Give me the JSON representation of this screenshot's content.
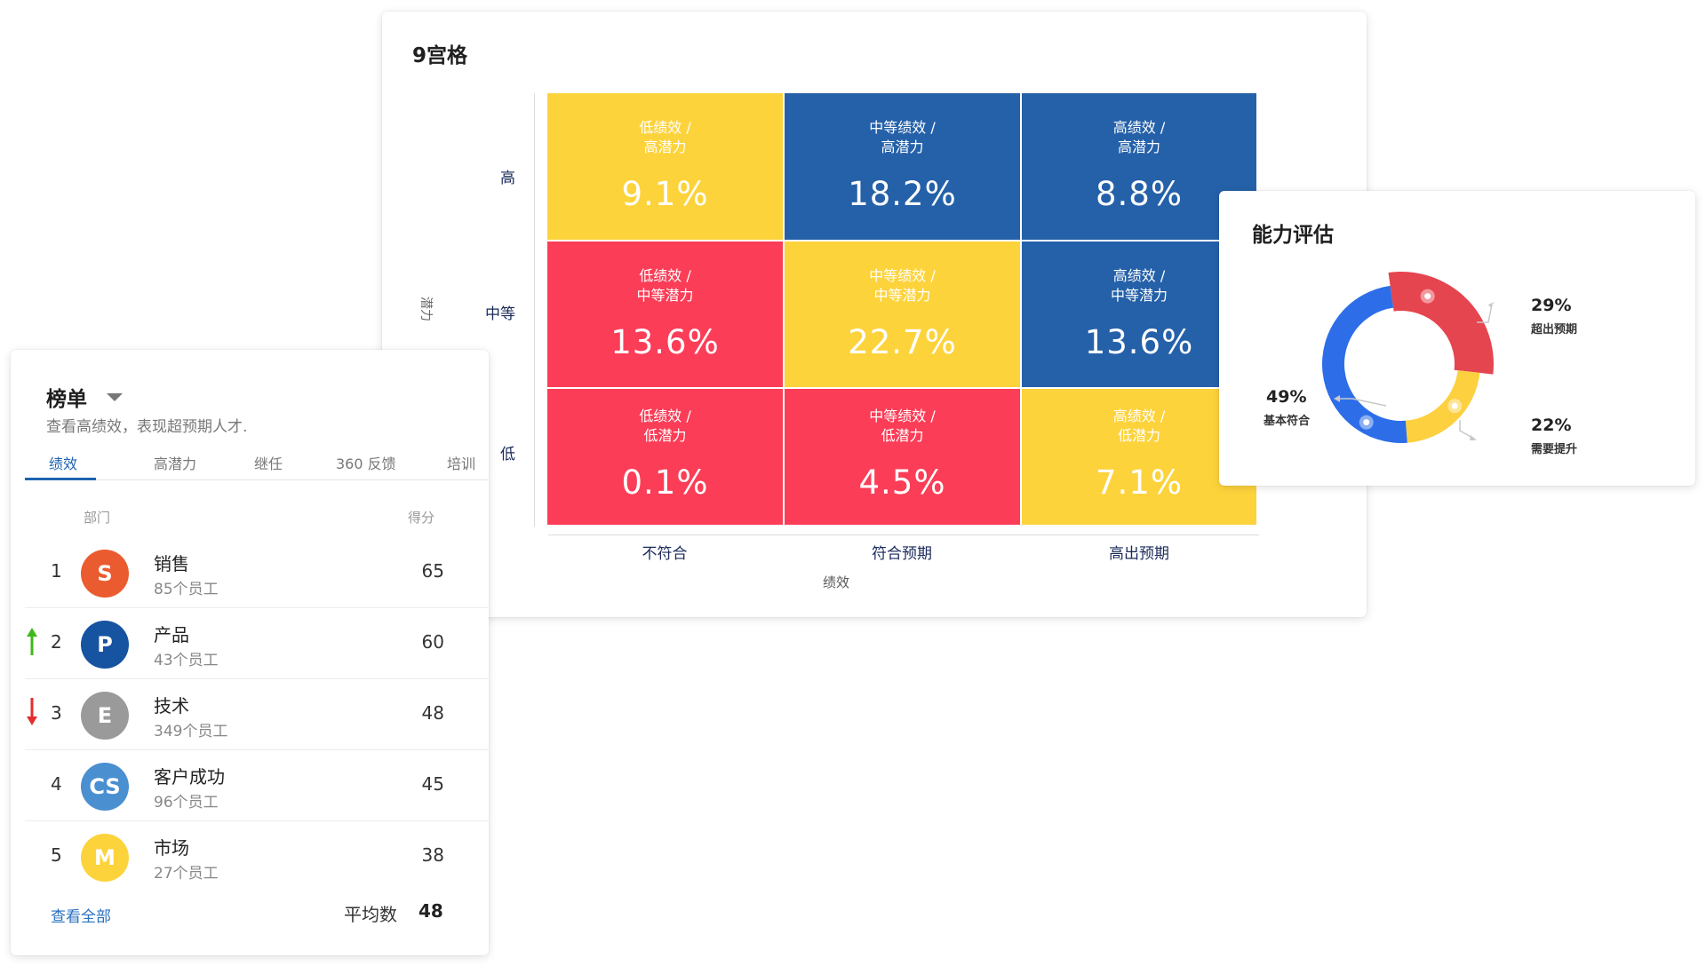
{
  "nine_grid": {
    "title": "9宫格",
    "y_title": "潜力",
    "y_ticks": [
      "高",
      "中等",
      "低"
    ],
    "x_ticks": [
      "不符合",
      "符合预期",
      "高出预期"
    ],
    "x_title": "绩效",
    "cells": [
      {
        "line1": "低绩效 /",
        "line2": "高潜力",
        "value": "9.1%",
        "color": "#fdd33c"
      },
      {
        "line1": "中等绩效 /",
        "line2": "高潜力",
        "value": "18.2%",
        "color": "#2561a9"
      },
      {
        "line1": "高绩效 /",
        "line2": "高潜力",
        "value": "8.8%",
        "color": "#2561a9"
      },
      {
        "line1": "低绩效 /",
        "line2": "中等潜力",
        "value": "13.6%",
        "color": "#fb3d57"
      },
      {
        "line1": "中等绩效 /",
        "line2": "中等潜力",
        "value": "22.7%",
        "color": "#fdd33c"
      },
      {
        "line1": "高绩效 /",
        "line2": "中等潜力",
        "value": "13.6%",
        "color": "#2561a9"
      },
      {
        "line1": "低绩效 /",
        "line2": "低潜力",
        "value": "0.1%",
        "color": "#fb3d57"
      },
      {
        "line1": "中等绩效 /",
        "line2": "低潜力",
        "value": "4.5%",
        "color": "#fb3d57"
      },
      {
        "line1": "高绩效 /",
        "line2": "低潜力",
        "value": "7.1%",
        "color": "#fdd33c"
      }
    ]
  },
  "ranking": {
    "title": "榜单",
    "subtitle": "查看高绩效，表现超预期人才.",
    "tabs": [
      "绩效",
      "高潜力",
      "继任",
      "360 反馈",
      "培训"
    ],
    "active_tab": 0,
    "columns": {
      "dept": "部门",
      "score": "得分"
    },
    "rows": [
      {
        "rank": "1",
        "avatar": "S",
        "avatar_color": "#ea5b2f",
        "name": "销售",
        "employees": "85个员工",
        "score": "65",
        "trend": "none"
      },
      {
        "rank": "2",
        "avatar": "P",
        "avatar_color": "#1653a0",
        "name": "产品",
        "employees": "43个员工",
        "score": "60",
        "trend": "up"
      },
      {
        "rank": "3",
        "avatar": "E",
        "avatar_color": "#9a9a9a",
        "name": "技术",
        "employees": "349个员工",
        "score": "48",
        "trend": "down"
      },
      {
        "rank": "4",
        "avatar": "CS",
        "avatar_color": "#4a8fd0",
        "name": "客户成功",
        "employees": "96个员工",
        "score": "45",
        "trend": "none"
      },
      {
        "rank": "5",
        "avatar": "M",
        "avatar_color": "#fdd33c",
        "name": "市场",
        "employees": "27个员工",
        "score": "38",
        "trend": "none"
      }
    ],
    "view_all": "查看全部",
    "average_label": "平均数",
    "average_value": "48"
  },
  "capability": {
    "title": "能力评估",
    "segments": [
      {
        "label": "超出预期",
        "percent": "29%",
        "value": 29,
        "color": "#e5454f"
      },
      {
        "label": "需要提升",
        "percent": "22%",
        "value": 22,
        "color": "#fcd03e"
      },
      {
        "label": "基本符合",
        "percent": "49%",
        "value": 49,
        "color": "#2d6ee8"
      }
    ]
  }
}
